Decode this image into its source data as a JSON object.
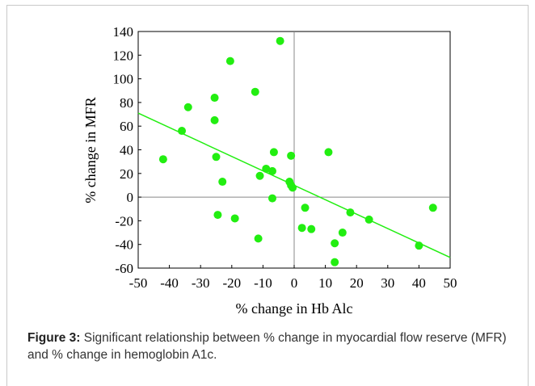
{
  "chart_data": {
    "type": "scatter",
    "xlabel": "% change in Hb Alc",
    "ylabel": "% change in MFR",
    "xlim": [
      -50,
      50
    ],
    "ylim": [
      -60,
      140
    ],
    "xticks": [
      -50,
      -40,
      -30,
      -20,
      -10,
      0,
      10,
      20,
      30,
      40,
      50
    ],
    "yticks": [
      -60,
      -40,
      -20,
      0,
      20,
      40,
      60,
      80,
      100,
      120,
      140
    ],
    "grid": false,
    "marker_color": "#22ee11",
    "line_color": "#22ee11",
    "points": [
      {
        "x": -42,
        "y": 32
      },
      {
        "x": -36,
        "y": 56
      },
      {
        "x": -34,
        "y": 76
      },
      {
        "x": -25.5,
        "y": 84
      },
      {
        "x": -25.5,
        "y": 65
      },
      {
        "x": -25,
        "y": 34
      },
      {
        "x": -24.5,
        "y": -15
      },
      {
        "x": -23,
        "y": 13
      },
      {
        "x": -20.5,
        "y": 115
      },
      {
        "x": -19,
        "y": -18
      },
      {
        "x": -12.5,
        "y": 89
      },
      {
        "x": -11.5,
        "y": -35
      },
      {
        "x": -11,
        "y": 18
      },
      {
        "x": -9,
        "y": 24
      },
      {
        "x": -7,
        "y": 22
      },
      {
        "x": -6.5,
        "y": 38
      },
      {
        "x": -7,
        "y": -1
      },
      {
        "x": -4.5,
        "y": 132
      },
      {
        "x": -1.5,
        "y": 13
      },
      {
        "x": -1,
        "y": 35
      },
      {
        "x": -1,
        "y": 10
      },
      {
        "x": -0.5,
        "y": 8
      },
      {
        "x": 2.5,
        "y": -26
      },
      {
        "x": 3.5,
        "y": -9
      },
      {
        "x": 5.5,
        "y": -27
      },
      {
        "x": 11,
        "y": 38
      },
      {
        "x": 13,
        "y": -39
      },
      {
        "x": 13,
        "y": -55
      },
      {
        "x": 15.5,
        "y": -30
      },
      {
        "x": 18,
        "y": -13
      },
      {
        "x": 24,
        "y": -19
      },
      {
        "x": 40,
        "y": -41
      },
      {
        "x": 44.5,
        "y": -9
      }
    ],
    "trendline": {
      "x": [
        -50,
        50
      ],
      "y": [
        71,
        -51
      ]
    }
  },
  "caption": {
    "label": "Figure 3:",
    "text": " Significant relationship between % change in myocardial flow reserve (MFR) and % change in hemoglobin A1c."
  }
}
